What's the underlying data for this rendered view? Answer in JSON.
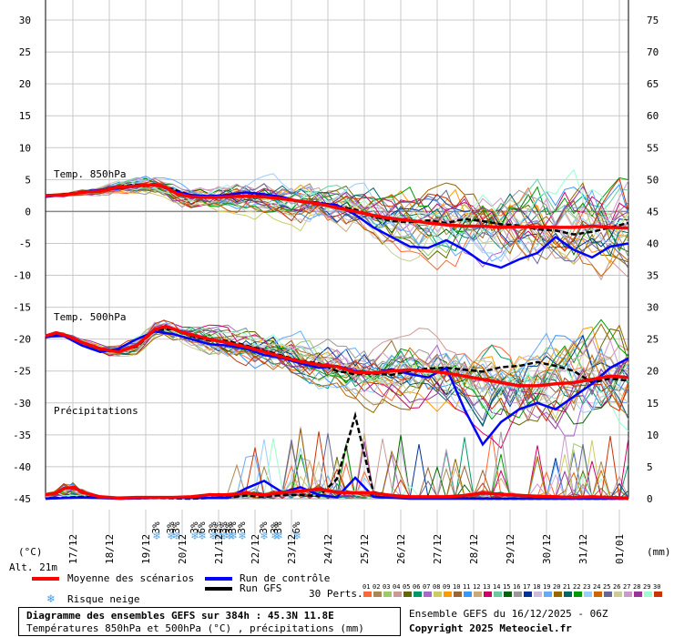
{
  "chart_data": {
    "type": "line",
    "title": "Diagramme des ensembles GEFS sur 384h : 45.3N 11.8E",
    "subtitle": "Températures 850hPa et 500hPa (°C) , précipitations (mm)",
    "left_axis": {
      "label": "(°C)",
      "ticks": [
        30,
        25,
        20,
        15,
        10,
        5,
        0,
        -5,
        -10,
        -15,
        -20,
        -25,
        -30,
        -35,
        -40,
        -45
      ],
      "range": [
        -45,
        30
      ]
    },
    "right_axis": {
      "label": "(mm)",
      "ticks": [
        75,
        70,
        65,
        60,
        55,
        50,
        45,
        40,
        35,
        30,
        25,
        20,
        15,
        10,
        5,
        0
      ],
      "range": [
        0,
        75
      ]
    },
    "x_labels": [
      "17/12",
      "18/12",
      "19/12",
      "20/12",
      "21/12",
      "22/12",
      "23/12",
      "24/12",
      "25/12",
      "26/12",
      "27/12",
      "28/12",
      "29/12",
      "30/12",
      "31/12",
      "01/01"
    ],
    "x_range_days": [
      0,
      16
    ],
    "altitude": "Alt. 21m",
    "section_labels": {
      "t850": "Temp. 850hPa",
      "t500": "Temp. 500hPa",
      "precip": "Précipitations"
    },
    "snow_risk_days": [
      3.05,
      3.45,
      3.6,
      4.1,
      4.3,
      4.6,
      4.75,
      4.9,
      5.05,
      5.15,
      5.4,
      6.0,
      6.3,
      6.4,
      6.9
    ],
    "snow_risk_labels": [
      "3%",
      "3%",
      "3%",
      "3%",
      "6%",
      "3%",
      "3%",
      "3%",
      "3%",
      "3%",
      "3%",
      "3%",
      "3%",
      "3%",
      "6%"
    ],
    "series": [
      {
        "name": "Moyenne des scénarios",
        "color": "#ff0000",
        "t850": [
          [
            0,
            2.5
          ],
          [
            0.5,
            2.6
          ],
          [
            1,
            3.0
          ],
          [
            1.5,
            3.2
          ],
          [
            2,
            3.8
          ],
          [
            2.5,
            4.0
          ],
          [
            3,
            4.2
          ],
          [
            3.3,
            3.8
          ],
          [
            3.6,
            2.8
          ],
          [
            4,
            2.3
          ],
          [
            4.5,
            2.2
          ],
          [
            5,
            2.3
          ],
          [
            5.5,
            2.4
          ],
          [
            6,
            2.3
          ],
          [
            6.5,
            2.0
          ],
          [
            7,
            1.6
          ],
          [
            7.5,
            1.2
          ],
          [
            8,
            0.6
          ],
          [
            8.5,
            0.0
          ],
          [
            9,
            -0.6
          ],
          [
            9.5,
            -1.1
          ],
          [
            10,
            -1.4
          ],
          [
            10.5,
            -1.8
          ],
          [
            11,
            -2.1
          ],
          [
            11.5,
            -2.3
          ],
          [
            12,
            -2.3
          ],
          [
            12.5,
            -2.5
          ],
          [
            13,
            -2.4
          ],
          [
            13.5,
            -2.4
          ],
          [
            14,
            -2.5
          ],
          [
            14.5,
            -2.5
          ],
          [
            15,
            -2.3
          ],
          [
            15.5,
            -2.5
          ],
          [
            16,
            -2.6
          ]
        ],
        "t500": [
          [
            0,
            -19.5
          ],
          [
            0.3,
            -19.0
          ],
          [
            0.6,
            -19.5
          ],
          [
            1,
            -20.5
          ],
          [
            1.5,
            -21.5
          ],
          [
            2,
            -22.0
          ],
          [
            2.5,
            -21.0
          ],
          [
            3,
            -18.5
          ],
          [
            3.3,
            -18.0
          ],
          [
            3.8,
            -19.0
          ],
          [
            4.5,
            -20.0
          ],
          [
            5,
            -20.6
          ],
          [
            5.5,
            -21.2
          ],
          [
            6,
            -22.0
          ],
          [
            6.5,
            -22.8
          ],
          [
            7,
            -23.5
          ],
          [
            7.5,
            -24.0
          ],
          [
            8,
            -24.3
          ],
          [
            8.5,
            -25.2
          ],
          [
            9,
            -25.3
          ],
          [
            9.5,
            -25.0
          ],
          [
            10,
            -24.8
          ],
          [
            10.5,
            -25.0
          ],
          [
            11,
            -25.3
          ],
          [
            11.5,
            -25.8
          ],
          [
            12,
            -26.3
          ],
          [
            12.5,
            -26.8
          ],
          [
            13,
            -27.3
          ],
          [
            13.5,
            -27.3
          ],
          [
            14,
            -27.0
          ],
          [
            14.5,
            -26.8
          ],
          [
            15,
            -26.3
          ],
          [
            15.5,
            -25.8
          ],
          [
            16,
            -26.0
          ]
        ],
        "precip": [
          [
            0,
            0.6
          ],
          [
            0.3,
            0.9
          ],
          [
            0.5,
            1.6
          ],
          [
            0.8,
            1.8
          ],
          [
            1,
            1.0
          ],
          [
            1.5,
            0.3
          ],
          [
            2,
            0.1
          ],
          [
            2.5,
            0.2
          ],
          [
            3,
            0.2
          ],
          [
            3.5,
            0.2
          ],
          [
            4,
            0.3
          ],
          [
            4.5,
            0.6
          ],
          [
            5,
            0.6
          ],
          [
            5.5,
            0.9
          ],
          [
            6,
            0.6
          ],
          [
            6.5,
            1.0
          ],
          [
            7,
            1.2
          ],
          [
            7.5,
            1.5
          ],
          [
            8,
            1.0
          ],
          [
            8.5,
            0.9
          ],
          [
            9,
            0.9
          ],
          [
            9.5,
            0.5
          ],
          [
            10,
            0.3
          ],
          [
            10.5,
            0.3
          ],
          [
            11,
            0.3
          ],
          [
            11.5,
            0.5
          ],
          [
            12,
            0.9
          ],
          [
            12.5,
            0.7
          ],
          [
            13,
            0.5
          ],
          [
            13.5,
            0.4
          ],
          [
            14,
            0.3
          ],
          [
            14.5,
            0.2
          ],
          [
            15,
            0.3
          ],
          [
            15.5,
            0.2
          ],
          [
            16,
            0.1
          ]
        ]
      },
      {
        "name": "Run de contrôle",
        "color": "#0000ff",
        "t850": [
          [
            0,
            2.3
          ],
          [
            0.5,
            2.6
          ],
          [
            1,
            3.1
          ],
          [
            1.5,
            3.4
          ],
          [
            2,
            3.6
          ],
          [
            2.5,
            4.0
          ],
          [
            3,
            4.3
          ],
          [
            3.5,
            3.2
          ],
          [
            4,
            2.6
          ],
          [
            4.5,
            2.4
          ],
          [
            5,
            2.6
          ],
          [
            5.5,
            3.0
          ],
          [
            6,
            2.7
          ],
          [
            6.5,
            2.3
          ],
          [
            7,
            1.5
          ],
          [
            7.5,
            1.3
          ],
          [
            8,
            1.0
          ],
          [
            8.5,
            -0.5
          ],
          [
            9,
            -2.5
          ],
          [
            9.5,
            -4.0
          ],
          [
            10,
            -5.5
          ],
          [
            10.5,
            -5.7
          ],
          [
            11,
            -4.5
          ],
          [
            11.5,
            -6.0
          ],
          [
            12,
            -8.0
          ],
          [
            12.5,
            -8.8
          ],
          [
            13,
            -7.5
          ],
          [
            13.5,
            -6.5
          ],
          [
            14,
            -4.0
          ],
          [
            14.5,
            -6.0
          ],
          [
            15,
            -7.2
          ],
          [
            15.5,
            -5.5
          ],
          [
            16,
            -5.0
          ]
        ],
        "t500": [
          [
            0,
            -19.6
          ],
          [
            0.5,
            -19.5
          ],
          [
            1,
            -21.0
          ],
          [
            1.5,
            -22.0
          ],
          [
            2,
            -21.5
          ],
          [
            2.5,
            -20.0
          ],
          [
            3,
            -18.8
          ],
          [
            3.5,
            -19.2
          ],
          [
            4,
            -20.0
          ],
          [
            4.5,
            -20.8
          ],
          [
            5,
            -21.0
          ],
          [
            5.5,
            -21.5
          ],
          [
            6,
            -22.5
          ],
          [
            6.5,
            -23.0
          ],
          [
            7,
            -23.8
          ],
          [
            7.5,
            -24.5
          ],
          [
            8,
            -24.2
          ],
          [
            8.5,
            -25.0
          ],
          [
            9,
            -25.3
          ],
          [
            9.5,
            -24.7
          ],
          [
            10,
            -25.5
          ],
          [
            10.5,
            -26.0
          ],
          [
            11,
            -24.5
          ],
          [
            11.5,
            -31.0
          ],
          [
            12,
            -36.5
          ],
          [
            12.5,
            -33.0
          ],
          [
            13,
            -31.0
          ],
          [
            13.5,
            -30.0
          ],
          [
            14,
            -31.0
          ],
          [
            14.5,
            -29.0
          ],
          [
            15,
            -27.0
          ],
          [
            15.5,
            -24.5
          ],
          [
            16,
            -23.0
          ]
        ],
        "precip": [
          [
            0,
            0.0
          ],
          [
            1,
            0.2
          ],
          [
            2,
            0.0
          ],
          [
            3,
            0.1
          ],
          [
            4,
            0.1
          ],
          [
            5,
            0.1
          ],
          [
            5.5,
            1.6
          ],
          [
            6,
            2.8
          ],
          [
            6.5,
            1.0
          ],
          [
            7,
            1.8
          ],
          [
            7.5,
            0.6
          ],
          [
            8,
            0.2
          ],
          [
            8.5,
            3.3
          ],
          [
            9,
            0.3
          ],
          [
            10,
            0.0
          ],
          [
            11,
            0.0
          ],
          [
            12,
            0.0
          ],
          [
            13,
            0.0
          ],
          [
            14,
            0.0
          ],
          [
            15,
            0.0
          ],
          [
            16,
            0.0
          ]
        ]
      },
      {
        "name": "Run GFS",
        "color": "#000000",
        "t850": [
          [
            0,
            2.4
          ],
          [
            0.5,
            2.7
          ],
          [
            1,
            3.1
          ],
          [
            1.5,
            3.3
          ],
          [
            2,
            3.9
          ],
          [
            2.5,
            4.2
          ],
          [
            3,
            4.1
          ],
          [
            3.5,
            3.5
          ],
          [
            4,
            2.5
          ],
          [
            4.5,
            2.2
          ],
          [
            5,
            2.3
          ],
          [
            5.5,
            2.5
          ],
          [
            6,
            2.6
          ],
          [
            6.5,
            2.0
          ],
          [
            7,
            1.6
          ],
          [
            7.5,
            1.4
          ],
          [
            8,
            0.8
          ],
          [
            8.5,
            0.3
          ],
          [
            9,
            -0.8
          ],
          [
            9.5,
            -1.5
          ],
          [
            10,
            -1.7
          ],
          [
            10.5,
            -1.4
          ],
          [
            11,
            -1.8
          ],
          [
            11.5,
            -1.2
          ],
          [
            12,
            -1.5
          ],
          [
            12.5,
            -2.0
          ],
          [
            13,
            -2.2
          ],
          [
            13.5,
            -2.8
          ],
          [
            14,
            -3.0
          ],
          [
            14.5,
            -3.6
          ],
          [
            15,
            -3.2
          ],
          [
            15.5,
            -2.5
          ],
          [
            16,
            -1.8
          ]
        ],
        "t500": [
          [
            0,
            -19.7
          ],
          [
            0.5,
            -19.3
          ],
          [
            1,
            -20.4
          ],
          [
            1.5,
            -21.6
          ],
          [
            2,
            -21.8
          ],
          [
            2.5,
            -21.2
          ],
          [
            3,
            -18.6
          ],
          [
            3.5,
            -18.4
          ],
          [
            4,
            -19.5
          ],
          [
            4.5,
            -20.2
          ],
          [
            5,
            -20.3
          ],
          [
            5.5,
            -21.0
          ],
          [
            6,
            -21.8
          ],
          [
            6.5,
            -22.6
          ],
          [
            7,
            -23.4
          ],
          [
            7.5,
            -23.8
          ],
          [
            8,
            -25.0
          ],
          [
            8.5,
            -25.5
          ],
          [
            9,
            -25.4
          ],
          [
            9.5,
            -25.6
          ],
          [
            10,
            -25.0
          ],
          [
            10.5,
            -24.6
          ],
          [
            11,
            -24.5
          ],
          [
            11.5,
            -24.8
          ],
          [
            12,
            -25.1
          ],
          [
            12.5,
            -24.4
          ],
          [
            13,
            -24.2
          ],
          [
            13.5,
            -23.6
          ],
          [
            14,
            -24.2
          ],
          [
            14.5,
            -25.0
          ],
          [
            15,
            -26.8
          ],
          [
            15.5,
            -26.2
          ],
          [
            16,
            -26.5
          ]
        ],
        "precip": [
          [
            0,
            0.0
          ],
          [
            1,
            0.3
          ],
          [
            2,
            0.0
          ],
          [
            3,
            0.1
          ],
          [
            4,
            0.0
          ],
          [
            5,
            0.2
          ],
          [
            5.5,
            0.5
          ],
          [
            6,
            0.3
          ],
          [
            6.5,
            0.6
          ],
          [
            7,
            0.6
          ],
          [
            7.5,
            0.4
          ],
          [
            8,
            3.1
          ],
          [
            8.5,
            13.0
          ],
          [
            9,
            1.0
          ],
          [
            9.5,
            0.5
          ],
          [
            10,
            0.2
          ],
          [
            11,
            0.1
          ],
          [
            12,
            0.0
          ],
          [
            13,
            0.0
          ],
          [
            14,
            0.0
          ],
          [
            15,
            0.0
          ],
          [
            16,
            0.0
          ]
        ]
      }
    ],
    "perturbations": {
      "label": "30 Perts.",
      "labels": [
        "01",
        "02",
        "03",
        "04",
        "05",
        "06",
        "07",
        "08",
        "09",
        "10",
        "11",
        "12",
        "13",
        "14",
        "15",
        "16",
        "17",
        "18",
        "19",
        "20",
        "21",
        "22",
        "23",
        "24",
        "25",
        "26",
        "27",
        "28",
        "29",
        "30"
      ],
      "colors": [
        "#ff6633",
        "#aa8855",
        "#99cc66",
        "#cc9999",
        "#666600",
        "#009966",
        "#aa66cc",
        "#cccc66",
        "#ff9900",
        "#996633",
        "#3399ff",
        "#ccaa77",
        "#cc0066",
        "#66cc99",
        "#006600",
        "#999999",
        "#003399",
        "#ccbbdd",
        "#66aaff",
        "#996600",
        "#006666",
        "#009900",
        "#99ccff",
        "#cc6600",
        "#666699",
        "#cccc99",
        "#cc99cc",
        "#993399",
        "#99ffcc",
        "#cc3300"
      ]
    }
  },
  "legend": {
    "mean": "Moyenne des scénarios",
    "control": "Run de contrôle",
    "gfs": "Run GFS",
    "snow": "Risque neige",
    "perts": "30 Perts."
  },
  "footer": {
    "title": "Diagramme des ensembles GEFS sur 384h : 45.3N 11.8E",
    "subtitle": "Températures 850hPa et 500hPa (°C) , précipitations (mm)",
    "run": "Ensemble GEFS du 16/12/2025 - 06Z",
    "copyright": "Copyright 2025 Meteociel.fr"
  }
}
